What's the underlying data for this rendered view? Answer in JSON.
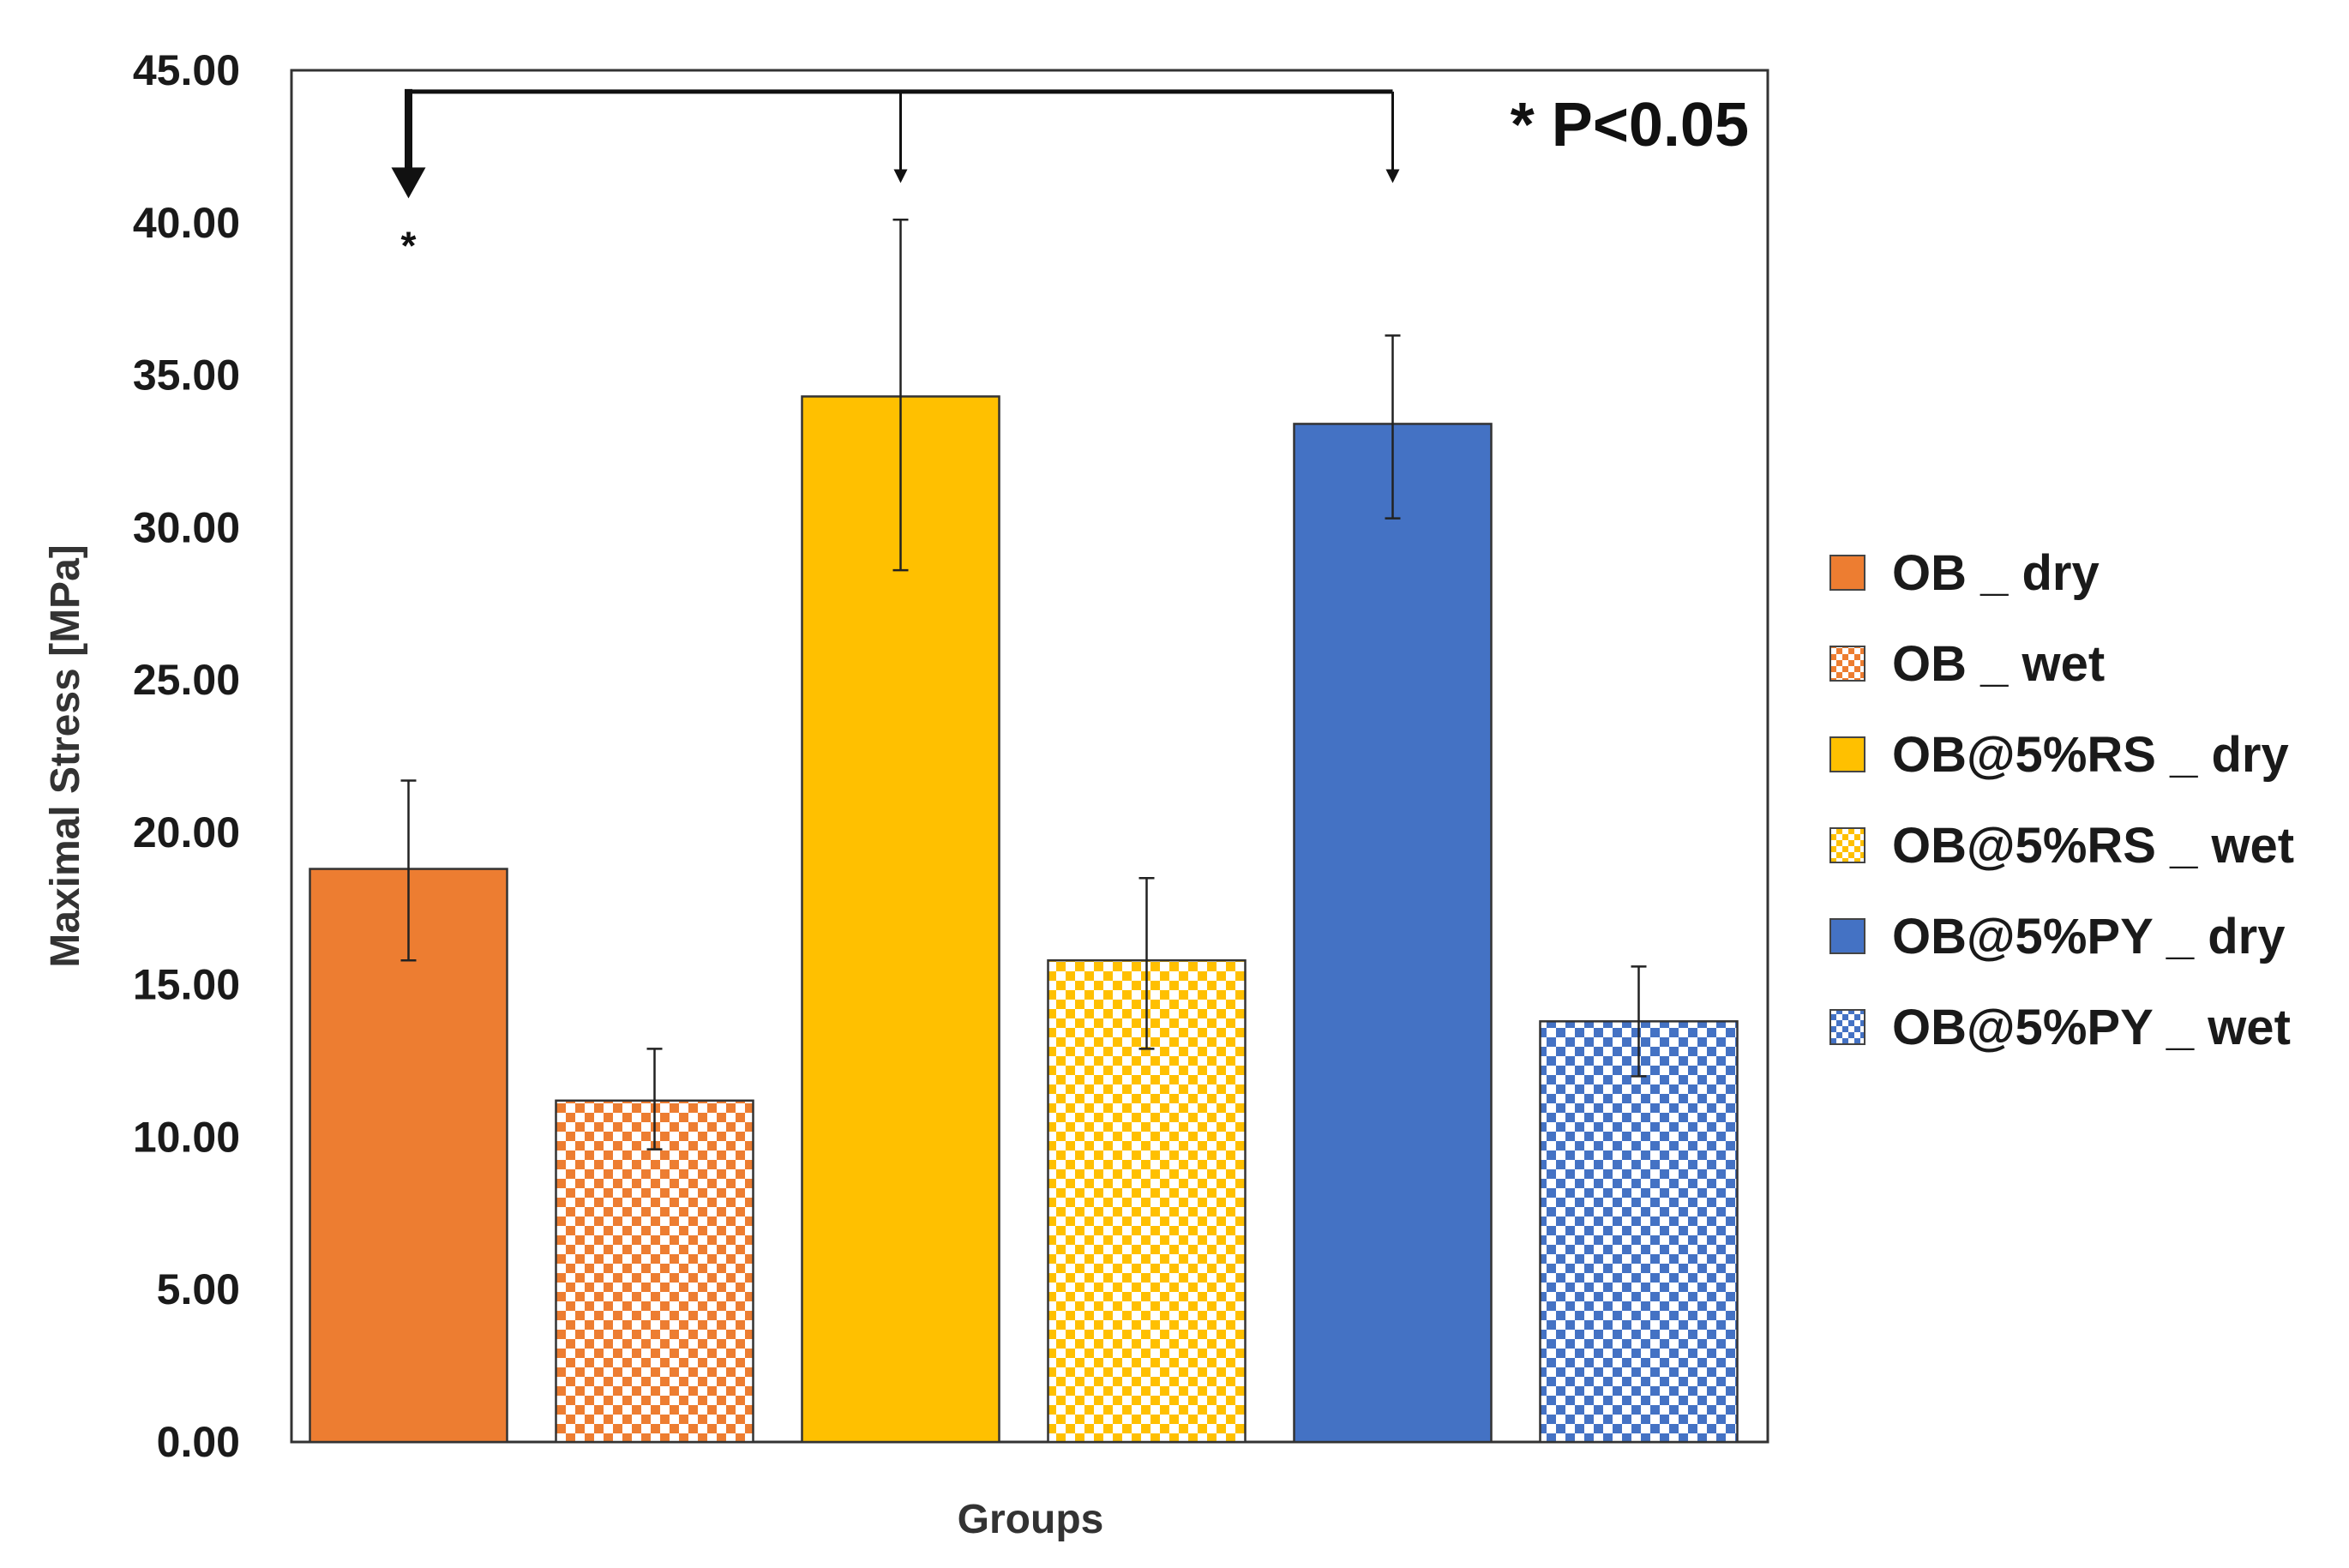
{
  "chart_data": {
    "type": "bar",
    "title": "",
    "xlabel": "Groups",
    "ylabel": "Maximal Stress [MPa]",
    "ylim": [
      0,
      45
    ],
    "yticks": [
      "0.00",
      "5.00",
      "10.00",
      "15.00",
      "20.00",
      "25.00",
      "30.00",
      "35.00",
      "40.00",
      "45.00"
    ],
    "grid": false,
    "legend_position": "right",
    "series": [
      {
        "name": "OB _ dry",
        "value": 18.8,
        "err_low": 15.8,
        "err_high": 21.7,
        "color": "#ED7D31",
        "pattern": "solid"
      },
      {
        "name": "OB _ wet",
        "value": 11.2,
        "err_low": 9.6,
        "err_high": 12.9,
        "color": "#ED7D31",
        "pattern": "checker"
      },
      {
        "name": "OB@5%RS _ dry",
        "value": 34.3,
        "err_low": 28.6,
        "err_high": 40.1,
        "color": "#FFC000",
        "pattern": "solid"
      },
      {
        "name": "OB@5%RS _ wet",
        "value": 15.8,
        "err_low": 12.9,
        "err_high": 18.5,
        "color": "#FFC000",
        "pattern": "checker"
      },
      {
        "name": "OB@5%PY _ dry",
        "value": 33.4,
        "err_low": 30.3,
        "err_high": 36.3,
        "color": "#4472C4",
        "pattern": "solid"
      },
      {
        "name": "OB@5%PY _ wet",
        "value": 13.8,
        "err_low": 12.0,
        "err_high": 15.6,
        "color": "#4472C4",
        "pattern": "checker"
      }
    ],
    "annotations": {
      "significance_label": "* P<0.05",
      "significance_marker": "*",
      "bracket_level": 44.3,
      "bracket_from": "OB _ dry",
      "bracket_to": [
        "OB@5%RS _ dry",
        "OB@5%PY _ dry"
      ]
    }
  }
}
